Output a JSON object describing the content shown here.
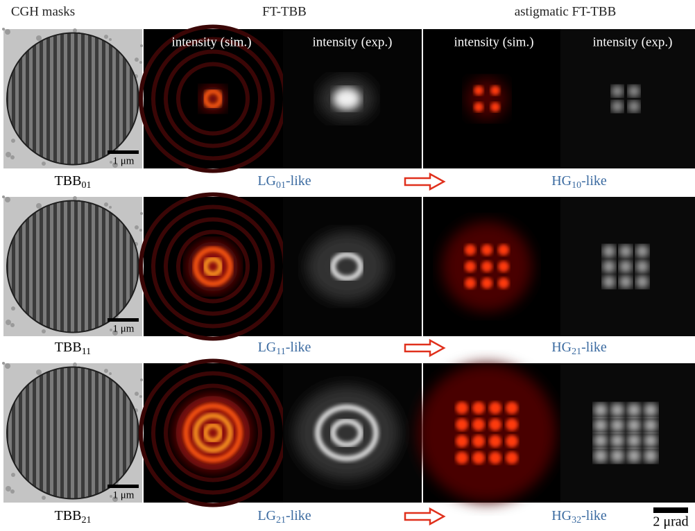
{
  "header": {
    "columns": [
      "CGH masks",
      "FT-TBB",
      "astigmatic FT-TBB"
    ],
    "subheaders": [
      "intensity (sim.)",
      "intensity (exp.)",
      "intensity (sim.)",
      "intensity (exp.)"
    ]
  },
  "rows": [
    {
      "mask": {
        "base": "TBB",
        "sub": "01"
      },
      "mask_scale": "1 μm",
      "lg": {
        "base": "LG",
        "sub": "01",
        "suffix": "-like"
      },
      "hg": {
        "base": "HG",
        "sub": "10",
        "suffix": "-like"
      }
    },
    {
      "mask": {
        "base": "TBB",
        "sub": "11"
      },
      "mask_scale": "1 μm",
      "lg": {
        "base": "LG",
        "sub": "11",
        "suffix": "-like"
      },
      "hg": {
        "base": "HG",
        "sub": "21",
        "suffix": "-like"
      }
    },
    {
      "mask": {
        "base": "TBB",
        "sub": "21"
      },
      "mask_scale": "1 μm",
      "lg": {
        "base": "LG",
        "sub": "21",
        "suffix": "-like"
      },
      "hg": {
        "base": "HG",
        "sub": "32",
        "suffix": "-like"
      }
    }
  ],
  "scale_bar": "2 μrad"
}
